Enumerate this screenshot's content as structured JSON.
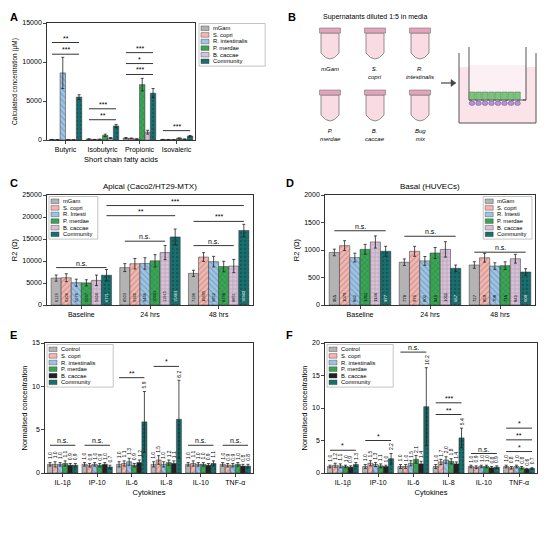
{
  "chart_data": [
    {
      "panel": "A",
      "type": "bar",
      "x_label": "Short chain fatty acids",
      "y_label": "Calculated concentration (μM)",
      "categories": [
        "Butyric",
        "Isobutyric",
        "Propionic",
        "Isovaleric"
      ],
      "series": [
        {
          "name": "mGam",
          "color": "#b3b3b3",
          "values": [
            60,
            120,
            250,
            60
          ],
          "errors": [
            20,
            30,
            60,
            20
          ]
        },
        {
          "name": "S. copri",
          "color": "#f4b6b0",
          "values": [
            30,
            60,
            200,
            50
          ],
          "errors": [
            10,
            20,
            50,
            20
          ]
        },
        {
          "name": "R. intestinalis",
          "color": "#9dc3e6",
          "values": [
            8600,
            80,
            120,
            40
          ],
          "errors": [
            2000,
            30,
            40,
            10
          ]
        },
        {
          "name": "P. merdae",
          "color": "#3aa655",
          "values": [
            40,
            600,
            7100,
            220
          ],
          "errors": [
            10,
            150,
            800,
            50
          ]
        },
        {
          "name": "B. caccae",
          "color": "#d9c2d9",
          "values": [
            30,
            250,
            1000,
            100
          ],
          "errors": [
            10,
            60,
            250,
            30
          ]
        },
        {
          "name": "Community",
          "color": "#1a6e6e",
          "values": [
            5500,
            1800,
            6000,
            500
          ],
          "errors": [
            300,
            200,
            600,
            80
          ]
        }
      ],
      "ylim": [
        0,
        15000
      ],
      "yticks": [
        0,
        5000,
        10000,
        15000
      ],
      "grid": false,
      "legend": "right",
      "data_labels": false,
      "annotations": [
        {
          "text": "***",
          "y": 11000,
          "category": "Butyric"
        },
        {
          "text": "**",
          "y": 12500,
          "category": "Butyric"
        },
        {
          "text": "**",
          "y": 2600,
          "category": "Isobutyric"
        },
        {
          "text": "***",
          "y": 4000,
          "category": "Isobutyric"
        },
        {
          "text": "***",
          "y": 8400,
          "category": "Propionic"
        },
        {
          "text": "*",
          "y": 9800,
          "category": "Propionic"
        },
        {
          "text": "***",
          "y": 11200,
          "category": "Propionic"
        },
        {
          "text": "***",
          "y": 1200,
          "category": "Isovaleric"
        }
      ]
    },
    {
      "panel": "C",
      "type": "bar",
      "title": "Apical (Caco2/HT29-MTX)",
      "y_label": "R2 (Ω)",
      "categories": [
        "Baseline",
        "24 hrs",
        "48 hrs"
      ],
      "series": [
        {
          "name": "mGam",
          "color": "#b3b3b3",
          "values": [
            6119,
            8503,
            7196
          ],
          "errors": [
            700,
            900,
            700
          ]
        },
        {
          "name": "S. copri",
          "color": "#f4b6b0",
          "values": [
            6206,
            9380,
            10895
          ],
          "errors": [
            900,
            1200,
            1000
          ]
        },
        {
          "name": "R. Intesti",
          "color": "#9dc3e6",
          "values": [
            5076,
            9446,
            9852
          ],
          "errors": [
            800,
            1300,
            1200
          ]
        },
        {
          "name": "P. merdae",
          "color": "#3aa655",
          "values": [
            5037,
            10041,
            8738
          ],
          "errors": [
            700,
            1400,
            1200
          ]
        },
        {
          "name": "B. caccae",
          "color": "#d9c2d9",
          "values": [
            5600,
            11915,
            8851
          ],
          "errors": [
            1200,
            1600,
            1500
          ]
        },
        {
          "name": "Community",
          "color": "#1a6e6e",
          "values": [
            6771,
            15463,
            16942
          ],
          "errors": [
            1300,
            1800,
            1400
          ]
        }
      ],
      "ylim": [
        0,
        25000
      ],
      "yticks": [
        0,
        5000,
        10000,
        15000,
        20000,
        25000
      ],
      "grid": false,
      "legend": "top-left",
      "data_labels": true,
      "annotations": [
        {
          "text": "n.s.",
          "y": 8500,
          "category": "Baseline"
        },
        {
          "text": "n.s.",
          "y": 14500,
          "category": "24 hrs",
          "series": [
            "mGam",
            "B. caccae"
          ]
        },
        {
          "text": "n.s.",
          "y": 13500,
          "category": "48 hrs",
          "series": [
            "mGam",
            "B. caccae"
          ]
        },
        {
          "text": "***",
          "y": 19000,
          "category": "48 hrs"
        },
        {
          "text": "**",
          "y": 20300,
          "from": "Baseline",
          "to": "24 hrs",
          "series": "Community"
        },
        {
          "text": "***",
          "y": 22600,
          "from": "Baseline",
          "to": "48 hrs",
          "series": "Community"
        }
      ]
    },
    {
      "panel": "D",
      "type": "bar",
      "title": "Basal (HUVECs)",
      "y_label": "R2 (Ω)",
      "categories": [
        "Baseline",
        "24 hrs",
        "48 hrs"
      ],
      "series": [
        {
          "name": "mGam",
          "color": "#b3b3b3",
          "values": [
            955,
            778,
            727
          ],
          "errors": [
            60,
            60,
            60
          ]
        },
        {
          "name": "S. copri",
          "color": "#f4b6b0",
          "values": [
            1079,
            976,
            859
          ],
          "errors": [
            90,
            90,
            80
          ]
        },
        {
          "name": "R. Intesti",
          "color": "#9dc3e6",
          "values": [
            862,
            802,
            708
          ],
          "errors": [
            80,
            80,
            60
          ]
        },
        {
          "name": "P. merdae",
          "color": "#3aa655",
          "values": [
            1012,
            946,
            715
          ],
          "errors": [
            90,
            100,
            70
          ]
        },
        {
          "name": "B. caccae",
          "color": "#d9c2d9",
          "values": [
            1146,
            1011,
            841
          ],
          "errors": [
            110,
            140,
            80
          ]
        },
        {
          "name": "Community",
          "color": "#1a6e6e",
          "values": [
            977,
            667,
            600
          ],
          "errors": [
            90,
            60,
            60
          ]
        }
      ],
      "ylim": [
        0,
        2000
      ],
      "yticks": [
        0,
        500,
        1000,
        1500,
        2000
      ],
      "grid": false,
      "legend": "top-right",
      "data_labels": true,
      "annotations": [
        {
          "text": "n.s.",
          "y": 1350,
          "category": "Baseline"
        },
        {
          "text": "n.s.",
          "y": 1250,
          "category": "24 hrs"
        },
        {
          "text": "n.s.",
          "y": 960,
          "category": "48 hrs"
        }
      ]
    },
    {
      "panel": "E",
      "type": "bar",
      "x_label": "Cytokines",
      "y_label": "Normalised concentration",
      "categories": [
        "IL-1β",
        "IP-10",
        "IL-6",
        "IL-8",
        "IL-10",
        "TNF-α"
      ],
      "series": [
        {
          "name": "Control",
          "color": "#b3b3b3",
          "values": [
            1.0,
            1.0,
            1.0,
            1.0,
            1.0,
            1.0
          ],
          "value_labels": [
            "1.0",
            "1.0",
            "1.0",
            "1.0",
            "1.0",
            "1.0"
          ],
          "errors": [
            0.2,
            0.2,
            0.3,
            0.3,
            0.2,
            0.2
          ]
        },
        {
          "name": "S. copri",
          "color": "#f4b6b0",
          "values": [
            1.0,
            0.9,
            1.1,
            1.5,
            1.1,
            0.9
          ],
          "value_labels": [
            "1.0",
            "0.9",
            "1.1",
            "1.5",
            "1.1",
            "0.9"
          ],
          "errors": [
            0.3,
            0.2,
            0.3,
            0.5,
            0.3,
            0.2
          ]
        },
        {
          "name": "R. intestinalis",
          "color": "#9dc3e6",
          "values": [
            1.0,
            1.0,
            1.3,
            1.0,
            1.0,
            0.9
          ],
          "value_labels": [
            "1.0",
            "1.0",
            "1.3",
            "1.0",
            "1.0",
            "0.9"
          ],
          "errors": [
            0.2,
            0.2,
            0.4,
            0.3,
            0.2,
            0.2
          ]
        },
        {
          "name": "P. merdae",
          "color": "#3aa655",
          "values": [
            1.1,
            0.9,
            0.9,
            1.2,
            1.0,
            1.0
          ],
          "value_labels": [
            "1.1",
            "0.9",
            "0.9",
            "1.2",
            "1.0",
            "1.0"
          ],
          "errors": [
            0.3,
            0.2,
            0.2,
            0.3,
            0.2,
            0.2
          ]
        },
        {
          "name": "B. caccae",
          "color": "#222222",
          "values": [
            0.9,
            1.0,
            1.2,
            1.1,
            0.9,
            0.8
          ],
          "value_labels": [
            "0.9",
            "1.0",
            "1.2",
            "1.1",
            "0.9",
            "0.8"
          ],
          "errors": [
            0.2,
            0.2,
            0.3,
            0.3,
            0.2,
            0.2
          ]
        },
        {
          "name": "Community",
          "color": "#1a6e6e",
          "values": [
            0.9,
            0.7,
            5.9,
            6.2,
            1.1,
            0.8
          ],
          "value_labels": [
            "0.9",
            "0.7",
            "5.9",
            "6.2",
            "1.1",
            "0.8"
          ],
          "errors": [
            0.2,
            0.2,
            3.5,
            4.5,
            0.3,
            0.2
          ]
        }
      ],
      "ylim": [
        0,
        15
      ],
      "yticks": [
        0,
        5,
        10,
        15
      ],
      "grid": false,
      "legend": "top-left",
      "data_labels": true,
      "annotations": [
        {
          "text": "n.s.",
          "y": 3.2,
          "category": "IL-1β"
        },
        {
          "text": "n.s.",
          "y": 3.2,
          "category": "IP-10"
        },
        {
          "text": "**",
          "y": 11,
          "category": "IL-6"
        },
        {
          "text": "*",
          "y": 12.3,
          "category": "IL-8"
        },
        {
          "text": "n.s.",
          "y": 3.2,
          "category": "IL-10"
        },
        {
          "text": "n.s.",
          "y": 3.2,
          "category": "TNF-α"
        }
      ]
    },
    {
      "panel": "F",
      "type": "bar",
      "x_label": "Cytokines",
      "y_label": "Normalised concentration",
      "categories": [
        "IL-1β",
        "IP-10",
        "IL-6",
        "IL-8",
        "IL-10",
        "TNF-α"
      ],
      "series": [
        {
          "name": "Control",
          "color": "#b3b3b3",
          "values": [
            1.0,
            1.0,
            1.0,
            1.0,
            1.0,
            1.0
          ],
          "value_labels": [
            "1.0",
            "1.0",
            "1.0",
            "1.0",
            "1.0",
            "1.0"
          ],
          "errors": [
            0.2,
            0.3,
            0.3,
            0.3,
            0.2,
            0.2
          ]
        },
        {
          "name": "S. copri",
          "color": "#f4b6b0",
          "values": [
            1.2,
            1.5,
            1.0,
            1.7,
            0.9,
            0.8
          ],
          "value_labels": [
            "1.2",
            "1.5",
            "1.0",
            "1.7",
            "0.9",
            "0.8"
          ],
          "errors": [
            0.3,
            0.4,
            0.3,
            0.4,
            0.2,
            0.2
          ]
        },
        {
          "name": "R. intestinalis",
          "color": "#9dc3e6",
          "values": [
            1.1,
            1.3,
            1.5,
            2.0,
            1.0,
            1.0
          ],
          "value_labels": [
            "1.1",
            "1.3",
            "1.5",
            "2.0",
            "1.0",
            "1.0"
          ],
          "errors": [
            0.3,
            0.3,
            0.4,
            0.5,
            0.2,
            0.2
          ]
        },
        {
          "name": "P. merdae",
          "color": "#3aa655",
          "values": [
            1.0,
            1.1,
            2.1,
            1.8,
            1.0,
            0.8
          ],
          "value_labels": [
            "1.0",
            "1.1",
            "2.1",
            "1.8",
            "1.0",
            "0.8"
          ],
          "errors": [
            0.2,
            0.3,
            0.6,
            0.4,
            0.2,
            0.2
          ]
        },
        {
          "name": "B. caccae",
          "color": "#222222",
          "values": [
            0.9,
            1.0,
            1.4,
            1.4,
            0.8,
            0.6
          ],
          "value_labels": [
            "0.9",
            "1.0",
            "1.4",
            "1.4",
            "0.8",
            "0.6"
          ],
          "errors": [
            0.2,
            0.2,
            0.4,
            0.3,
            0.2,
            0.1
          ]
        },
        {
          "name": "Community",
          "color": "#1a6e6e",
          "values": [
            1.3,
            2.2,
            10.2,
            5.4,
            0.9,
            0.7
          ],
          "value_labels": [
            "1.3",
            "2.2",
            "10.2",
            "5.4",
            "0.9",
            "0.7"
          ],
          "errors": [
            0.3,
            0.8,
            6.0,
            1.5,
            0.2,
            0.1
          ]
        }
      ],
      "ylim": [
        0,
        20
      ],
      "yticks": [
        0,
        5,
        10,
        15,
        20
      ],
      "grid": false,
      "legend": "top-left",
      "data_labels": true,
      "annotations": [
        {
          "text": "*",
          "y": 3.5,
          "category": "IL-1β"
        },
        {
          "text": "*",
          "y": 5.0,
          "category": "IP-10"
        },
        {
          "text": "n.s.",
          "y": 18.6,
          "category": "IL-6"
        },
        {
          "text": "**",
          "y": 9,
          "category": "IL-8"
        },
        {
          "text": "***",
          "y": 10.8,
          "category": "IL-8"
        },
        {
          "text": "n.s.",
          "y": 3.0,
          "category": "IL-10"
        },
        {
          "text": "*",
          "y": 3.3,
          "category": "TNF-α"
        },
        {
          "text": "**",
          "y": 5.1,
          "category": "TNF-α"
        },
        {
          "text": "*",
          "y": 6.9,
          "category": "TNF-α"
        }
      ]
    }
  ],
  "diagram": {
    "panel": "B",
    "caption": "Supernatants diluted 1:5 in media",
    "tubes": [
      "mGam",
      "S. copri",
      "R. intestinalis",
      "P. merdae",
      "B. caccae",
      "Bug mix"
    ]
  }
}
